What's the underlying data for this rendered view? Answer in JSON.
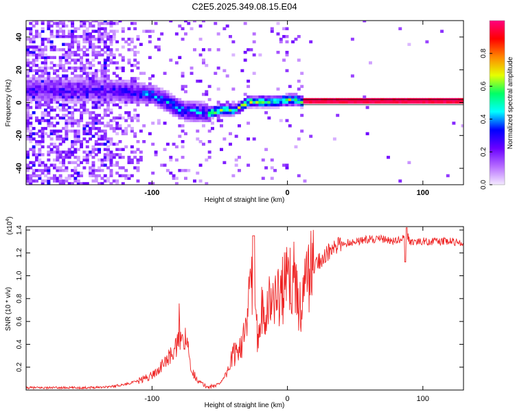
{
  "title": "C2E5.2025.349.08.15.E04",
  "chart_data": [
    {
      "type": "heatmap",
      "xlabel": "Height of straight line (km)",
      "ylabel": "Frequency (Hz)",
      "xlim": [
        -193,
        130
      ],
      "ylim": [
        -50,
        50
      ],
      "xticks": [
        -100,
        0,
        100
      ],
      "yticks": [
        -40,
        -20,
        0,
        20,
        40
      ],
      "ridge": {
        "x": [
          -160,
          -140,
          -120,
          -100,
          -90,
          -80,
          -70,
          -60,
          -50,
          -45,
          -40,
          -35,
          -30,
          -20,
          -10,
          0,
          5,
          10,
          130
        ],
        "frequency": [
          7,
          7,
          6,
          4,
          0,
          -5,
          -6,
          -7,
          -5,
          -5,
          -5,
          -3,
          0,
          0,
          0,
          1,
          1,
          0,
          0
        ]
      },
      "colorbar": {
        "label": "Normalized spectral amplitude",
        "range": [
          0,
          1
        ],
        "ticks": [
          "0.0",
          "0.2",
          "0.4",
          "0.6",
          "0.8"
        ],
        "colors": [
          "#f4eaff",
          "#b66cff",
          "#6a00ff",
          "#0000ff",
          "#00ffff",
          "#00ff66",
          "#e6ff00",
          "#ff8800",
          "#ff0000",
          "#ff007f"
        ]
      }
    },
    {
      "type": "line",
      "xlabel": "Height of straight line (km)",
      "ylabel": "SNR (10 * v/v)",
      "scale_label": "(x10",
      "scale_exp": "4",
      "scale_close": ")",
      "xlim": [
        -193,
        130
      ],
      "ylim": [
        0,
        1.43
      ],
      "xticks": [
        -100,
        0,
        100
      ],
      "yticks": [
        "0.2",
        "0.4",
        "0.6",
        "0.8",
        "1.0",
        "1.2",
        "1.4"
      ],
      "color": "#ee2222",
      "series": [
        {
          "name": "SNR",
          "x": [
            -193,
            -150,
            -130,
            -120,
            -110,
            -100,
            -95,
            -90,
            -85,
            -80,
            -75,
            -70,
            -65,
            -60,
            -55,
            -50,
            -45,
            -40,
            -35,
            -30,
            -27,
            -25,
            -22,
            -20,
            -15,
            -10,
            -5,
            0,
            5,
            10,
            15,
            20,
            30,
            40,
            50,
            60,
            70,
            80,
            85,
            88,
            90,
            100,
            110,
            120,
            130
          ],
          "values": [
            0.02,
            0.02,
            0.03,
            0.05,
            0.08,
            0.13,
            0.18,
            0.25,
            0.32,
            0.42,
            0.45,
            0.15,
            0.07,
            0.03,
            0.03,
            0.06,
            0.15,
            0.3,
            0.4,
            0.5,
            1.1,
            0.6,
            0.5,
            0.7,
            0.75,
            0.8,
            0.85,
            0.95,
            0.98,
            0.7,
            1.02,
            1.1,
            1.2,
            1.28,
            1.3,
            1.32,
            1.32,
            1.3,
            1.32,
            1.38,
            1.3,
            1.3,
            1.3,
            1.3,
            1.29
          ]
        }
      ]
    }
  ]
}
